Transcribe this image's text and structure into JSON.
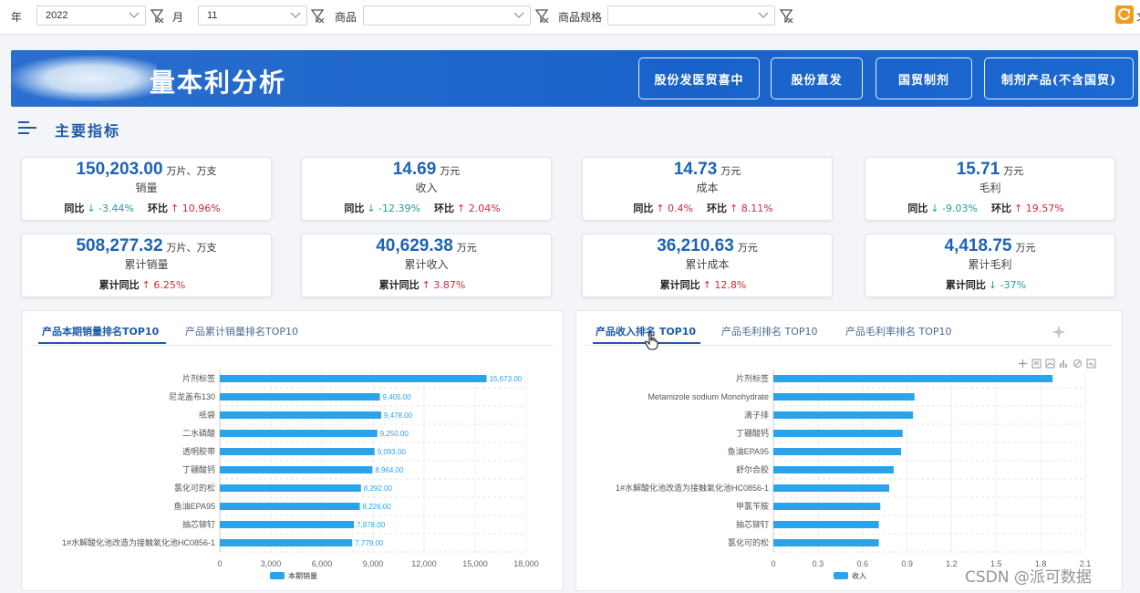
{
  "filters": {
    "year": {
      "label": "年",
      "value": "2022"
    },
    "month": {
      "label": "月",
      "value": "11"
    },
    "product": {
      "label": "商品",
      "value": ""
    },
    "spec": {
      "label": "商品规格",
      "value": ""
    }
  },
  "header": {
    "title": "量本利分析",
    "buttons": [
      "股份发医贸喜中",
      "股份直发",
      "国贸制剂",
      "制剂产品(不含国贸)"
    ]
  },
  "section": {
    "title": "主要指标"
  },
  "kpis": [
    {
      "value": "150,203.00",
      "unit": "万片、万支",
      "label": "销量",
      "yoy_label": "同比",
      "yoy": "↓ -3.44%",
      "yoy_dir": "down",
      "mom_label": "环比",
      "mom": "↑ 10.96%",
      "mom_dir": "up"
    },
    {
      "value": "14.69",
      "unit": "万元",
      "label": "收入",
      "yoy_label": "同比",
      "yoy": "↓ -12.39%",
      "yoy_dir": "down",
      "mom_label": "环比",
      "mom": "↑ 2.04%",
      "mom_dir": "up"
    },
    {
      "value": "14.73",
      "unit": "万元",
      "label": "成本",
      "yoy_label": "同比",
      "yoy": "↑ 0.4%",
      "yoy_dir": "up",
      "mom_label": "环比",
      "mom": "↑ 8.11%",
      "mom_dir": "up"
    },
    {
      "value": "15.71",
      "unit": "万元",
      "label": "毛利",
      "yoy_label": "同比",
      "yoy": "↓ -9.03%",
      "yoy_dir": "down",
      "mom_label": "环比",
      "mom": "↑ 19.57%",
      "mom_dir": "up"
    },
    {
      "value": "508,277.32",
      "unit": "万片、万支",
      "label": "累计销量",
      "yoy_label": "累计同比",
      "yoy": "↑ 6.25%",
      "yoy_dir": "up"
    },
    {
      "value": "40,629.38",
      "unit": "万元",
      "label": "累计收入",
      "yoy_label": "累计同比",
      "yoy": "↑ 3.87%",
      "yoy_dir": "up"
    },
    {
      "value": "36,210.63",
      "unit": "万元",
      "label": "累计成本",
      "yoy_label": "累计同比",
      "yoy": "↑ 12.8%",
      "yoy_dir": "up"
    },
    {
      "value": "4,418.75",
      "unit": "万元",
      "label": "累计毛利",
      "yoy_label": "累计同比",
      "yoy": "↓ -37%",
      "yoy_dir": "down"
    }
  ],
  "left_panel": {
    "tabs": [
      "产品本期销量排名TOP10",
      "产品累计销量排名TOP10"
    ],
    "active_tab": 0
  },
  "right_panel": {
    "tabs": [
      "产品收入排名 TOP10",
      "产品毛利排名 TOP10",
      "产品毛利率排名 TOP10"
    ],
    "active_tab": 0
  },
  "chart_data": [
    {
      "type": "bar",
      "orientation": "horizontal",
      "categories": [
        "片剂标签",
        "尼龙盖布130",
        "纸袋",
        "二水磷酸",
        "透明胶带",
        "丁硼酸钙",
        "氯化可的松",
        "鱼油EPA95",
        "抽芯铆钉",
        "1#水解酸化池改造为接触氧化池HC0856-1"
      ],
      "series": [
        {
          "name": "本期销量",
          "values": [
            15673.0,
            9405.0,
            9478.0,
            9250.0,
            9093.0,
            8964.0,
            8292.0,
            8226.0,
            7878.0,
            7779.0
          ]
        }
      ],
      "data_labels": [
        "15,673.00",
        "9,405.00",
        "9,478.00",
        "9,250.00",
        "9,093.00",
        "8,964.00",
        "8,292.00",
        "8,226.00",
        "7,878.00",
        "7,779.00"
      ],
      "x_ticks": [
        "0",
        "3,000",
        "6,000",
        "9,000",
        "12,000",
        "15,000",
        "18,000"
      ],
      "xlim": [
        0,
        18000
      ],
      "legend": "bottom-center",
      "color": "#29a3ea"
    },
    {
      "type": "bar",
      "orientation": "horizontal",
      "categories": [
        "片剂标签",
        "Metamizole sodium Monohydrate",
        "滴子排",
        "丁硼酸钙",
        "鱼油EPA95",
        "舒尔合胶",
        "1#水解酸化池改造为接触氧化池HC0856-1",
        "甲氯苄胺",
        "抽芯铆钉",
        "氯化可的松"
      ],
      "series": [
        {
          "name": "收入",
          "values": [
            1.88,
            0.95,
            0.94,
            0.87,
            0.86,
            0.81,
            0.78,
            0.72,
            0.71,
            0.71
          ]
        }
      ],
      "x_ticks": [
        "0",
        "0.3",
        "0.6",
        "0.9",
        "1.2",
        "1.5",
        "1.8",
        "2.1"
      ],
      "xlim": [
        0,
        2.1
      ],
      "legend": "bottom-center",
      "color": "#29a3ea"
    }
  ],
  "watermark": "CSDN @派可数据"
}
